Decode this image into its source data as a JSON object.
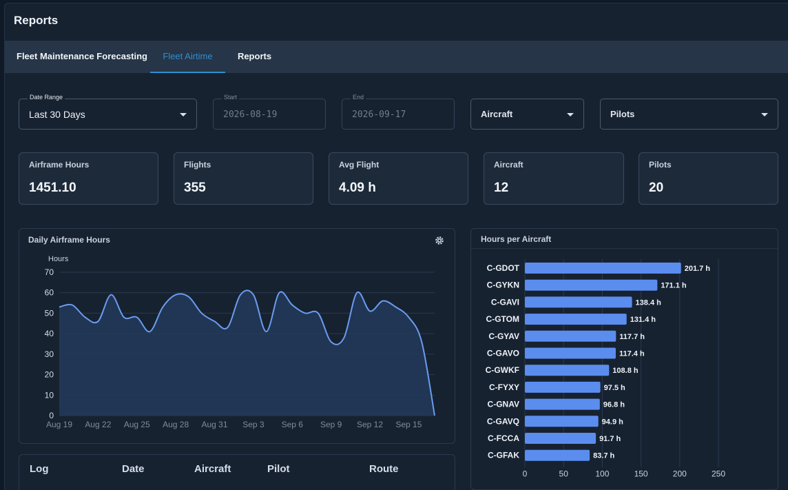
{
  "page": {
    "title": "Reports"
  },
  "tabs": [
    {
      "label": "Fleet Maintenance Forecasting",
      "active": false
    },
    {
      "label": "Fleet Airtime",
      "active": true
    },
    {
      "label": "Reports",
      "active": false
    }
  ],
  "filters": {
    "date_range": {
      "label": "Date Range",
      "value": "Last 30 Days"
    },
    "start": {
      "label": "Start",
      "value": "2026-08-19"
    },
    "end": {
      "label": "End",
      "value": "2026-09-17"
    },
    "aircraft": {
      "placeholder": "Aircraft"
    },
    "pilots": {
      "placeholder": "Pilots"
    }
  },
  "stats": [
    {
      "label": "Airframe Hours",
      "value": "1451.10"
    },
    {
      "label": "Flights",
      "value": "355"
    },
    {
      "label": "Avg Flight",
      "value": "4.09 h"
    },
    {
      "label": "Aircraft",
      "value": "12"
    },
    {
      "label": "Pilots",
      "value": "20"
    }
  ],
  "colors": {
    "accent": "#2f8fd3",
    "bar": "#5b8def",
    "line": "#6b9cf0",
    "area": "#22395a"
  },
  "icons": {
    "chart_settings": "gear-icon",
    "dropdown": "caret-down-icon"
  },
  "table": {
    "columns": [
      "Log",
      "Date",
      "Aircraft",
      "Pilot",
      "Route"
    ]
  },
  "chart_data": [
    {
      "type": "area",
      "title": "Daily Airframe Hours",
      "ylabel": "Hours",
      "ylim": [
        0,
        70
      ],
      "yticks": [
        0,
        10,
        20,
        30,
        40,
        50,
        60,
        70
      ],
      "x": [
        "Aug 19",
        "Aug 20",
        "Aug 21",
        "Aug 22",
        "Aug 23",
        "Aug 24",
        "Aug 25",
        "Aug 26",
        "Aug 27",
        "Aug 28",
        "Aug 29",
        "Aug 30",
        "Aug 31",
        "Sep 1",
        "Sep 2",
        "Sep 3",
        "Sep 4",
        "Sep 5",
        "Sep 6",
        "Sep 7",
        "Sep 8",
        "Sep 9",
        "Sep 10",
        "Sep 11",
        "Sep 12",
        "Sep 13",
        "Sep 14",
        "Sep 15",
        "Sep 16",
        "Sep 17"
      ],
      "xtick_labels": [
        "Aug 19",
        "Aug 22",
        "Aug 25",
        "Aug 28",
        "Aug 31",
        "Sep 3",
        "Sep 6",
        "Sep 9",
        "Sep 12",
        "Sep 15"
      ],
      "values": [
        53,
        54,
        48,
        46,
        59,
        48,
        48,
        41,
        53,
        59,
        58,
        50,
        46,
        43,
        59,
        59,
        41,
        60,
        54,
        50,
        50,
        36,
        38,
        60,
        51,
        56,
        53,
        48,
        36,
        0
      ],
      "grid": true
    },
    {
      "type": "bar",
      "orientation": "horizontal",
      "title": "Hours per Aircraft",
      "categories": [
        "C-GDOT",
        "C-GYKN",
        "C-GAVI",
        "C-GTOM",
        "C-GYAV",
        "C-GAVO",
        "C-GWKF",
        "C-FYXY",
        "C-GNAV",
        "C-GAVQ",
        "C-FCCA",
        "C-GFAK"
      ],
      "values": [
        201.7,
        171.1,
        138.4,
        131.4,
        117.7,
        117.4,
        108.8,
        97.5,
        96.8,
        94.9,
        91.7,
        83.7
      ],
      "value_labels": [
        "201.7 h",
        "171.1 h",
        "138.4 h",
        "131.4 h",
        "117.7 h",
        "117.4 h",
        "108.8 h",
        "97.5 h",
        "96.8 h",
        "94.9 h",
        "91.7 h",
        "83.7 h"
      ],
      "xlim": [
        0,
        250
      ],
      "xticks": [
        0,
        50,
        100,
        150,
        200,
        250
      ],
      "grid": true
    }
  ]
}
